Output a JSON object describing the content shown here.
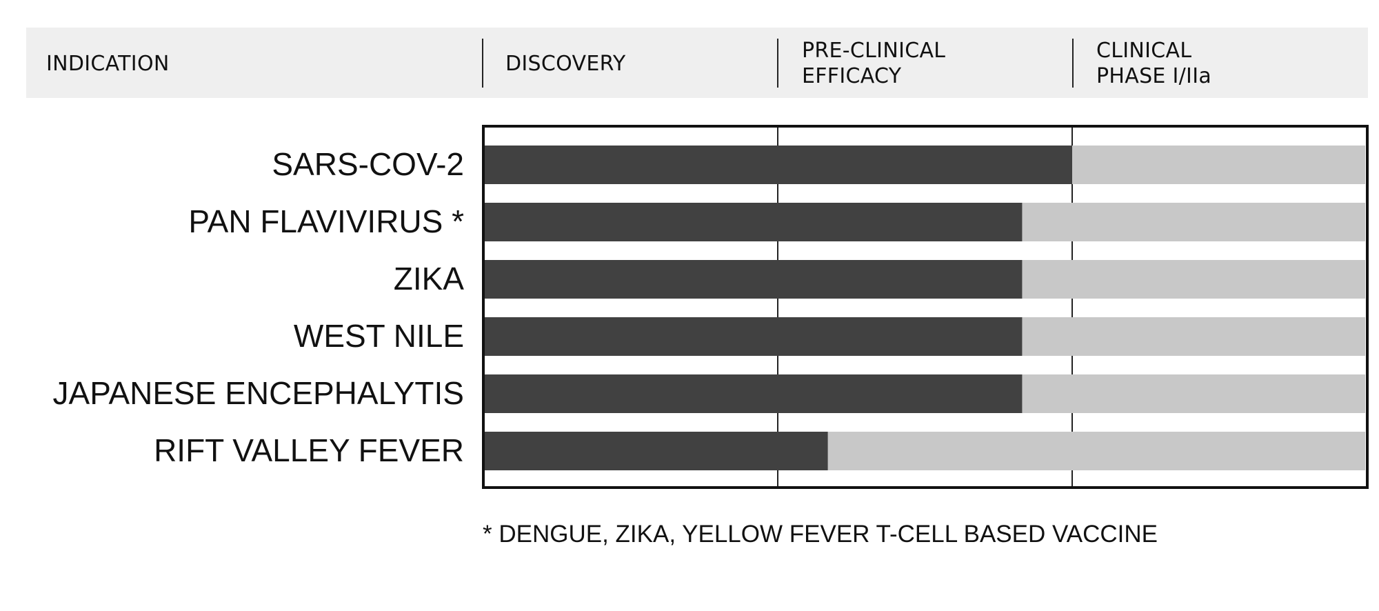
{
  "header": {
    "indication": "INDICATION",
    "discovery": "DISCOVERY",
    "preclinical_line1": "PRE-CLINICAL",
    "preclinical_line2": "EFFICACY",
    "clinical_line1": "CLINICAL",
    "clinical_line2": "PHASE I/IIa"
  },
  "chart_data": {
    "type": "bar",
    "orientation": "horizontal",
    "stacked": true,
    "categories": [
      "SARS-COV-2",
      "PAN FLAVIVIRUS *",
      "ZIKA",
      "WEST NILE",
      "JAPANESE ENCEPHALYTIS",
      "RIFT VALLEY FEVER"
    ],
    "stages": [
      "DISCOVERY",
      "PRE-CLINICAL EFFICACY",
      "CLINICAL PHASE I/IIa"
    ],
    "progress_stages": [
      2.0,
      1.83,
      1.83,
      1.83,
      1.83,
      1.17
    ],
    "xlim": [
      0,
      3
    ],
    "grid": true,
    "colors": {
      "progress": "#414141",
      "remaining": "#c8c8c8",
      "frame": "#111111"
    }
  },
  "footnote": "* DENGUE, ZIKA, YELLOW FEVER T-CELL BASED VACCINE"
}
